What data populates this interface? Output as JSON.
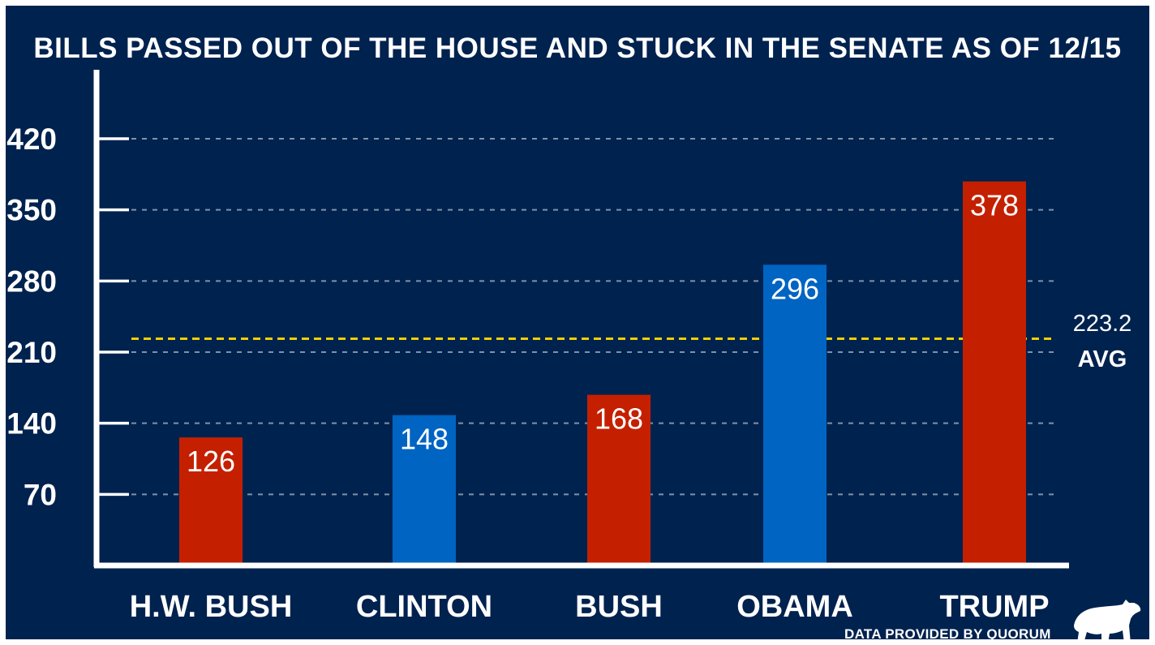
{
  "chart_data": {
    "type": "bar",
    "title": "BILLS PASSED OUT OF THE HOUSE AND STUCK IN THE SENATE AS OF 12/15",
    "categories": [
      "H.W. BUSH",
      "CLINTON",
      "BUSH",
      "OBAMA",
      "TRUMP"
    ],
    "values": [
      126,
      148,
      168,
      296,
      378
    ],
    "bar_colors": [
      "#c42000",
      "#0064c2",
      "#c42000",
      "#0064c2",
      "#c42000"
    ],
    "ylim": [
      0,
      490
    ],
    "yticks": [
      70,
      140,
      210,
      280,
      350,
      420
    ],
    "grid": true,
    "average": {
      "value": 223.2,
      "value_label": "223.2",
      "label": "AVG",
      "color": "#f0d000"
    }
  },
  "footer": {
    "source": "DATA PROVIDED BY QUORUM",
    "logo_icon": "bear-icon"
  },
  "colors": {
    "background": "#00224f",
    "axis": "#ffffff",
    "grid": "#7f93a9"
  }
}
